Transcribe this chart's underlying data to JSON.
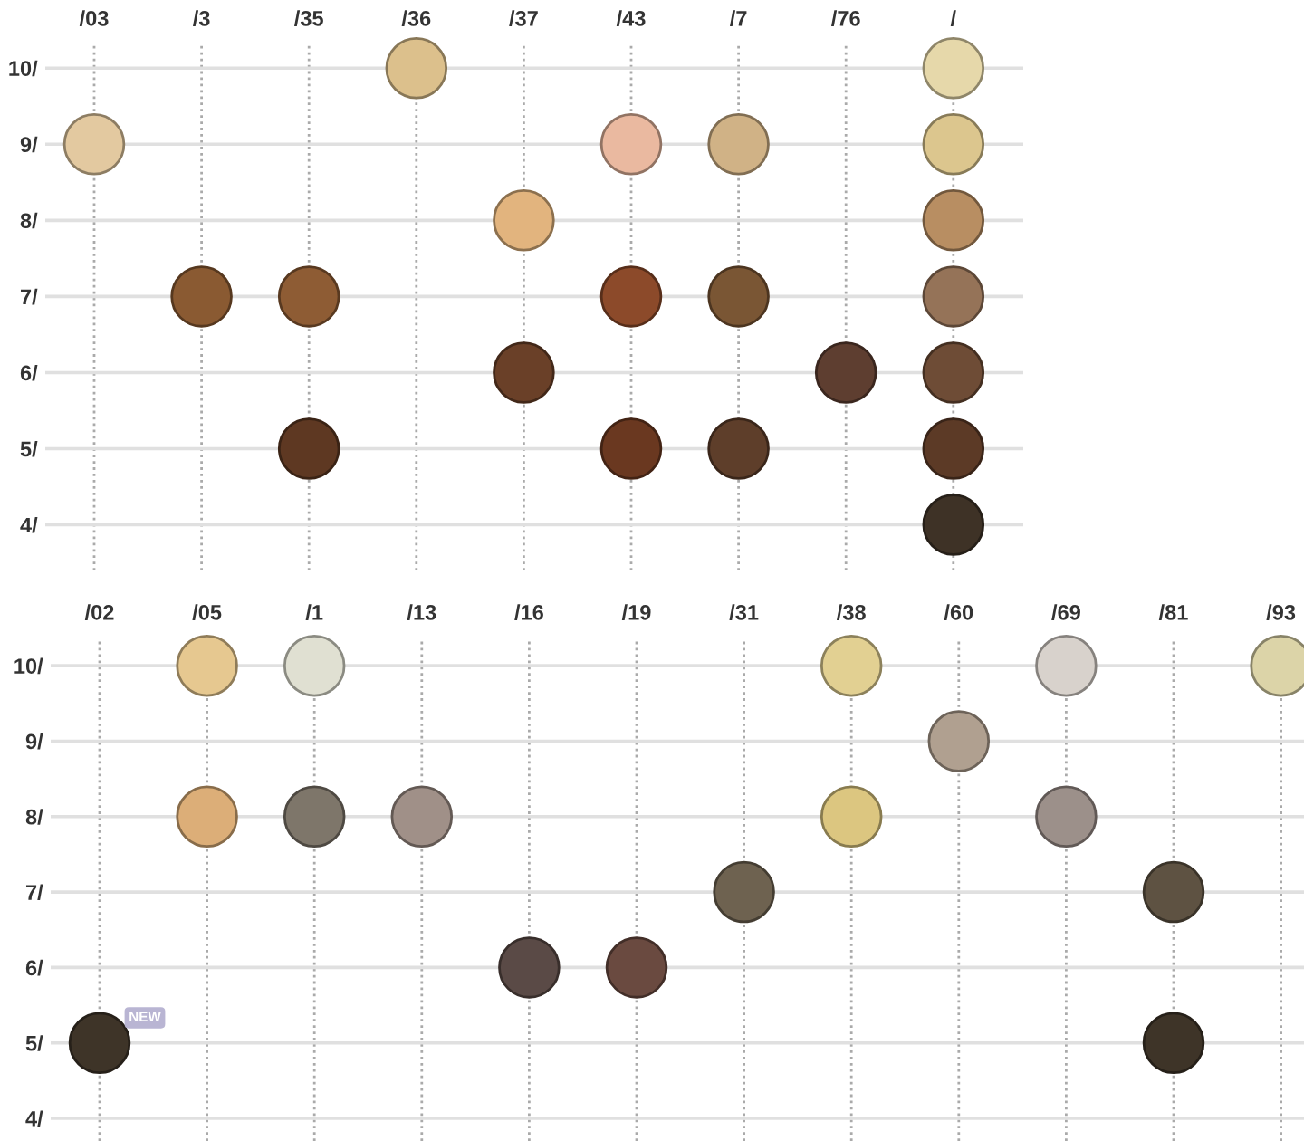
{
  "chart_data": [
    {
      "type": "scatter",
      "categories": [
        "/03",
        "/3",
        "/35",
        "/36",
        "/37",
        "/43",
        "/7",
        "/76",
        "/"
      ],
      "series": [
        {
          "x": [
            "/03",
            "/3",
            "/35",
            "/35",
            "/36",
            "/37",
            "/37",
            "/43",
            "/43",
            "/43",
            "/7",
            "/7",
            "/7",
            "/76",
            "/",
            "/",
            "/",
            "/",
            "/",
            "/",
            "/"
          ],
          "values": [
            9,
            7,
            7,
            5,
            10,
            8,
            6,
            9,
            7,
            5,
            9,
            7,
            5,
            6,
            10,
            9,
            8,
            7,
            6,
            5,
            4
          ],
          "colors": [
            "#e3c9a0",
            "#8a5a32",
            "#8e5c34",
            "#5e3822",
            "#dcc08c",
            "#e2b47e",
            "#6a4028",
            "#eab9a0",
            "#8c4a2a",
            "#6a3820",
            "#d0b286",
            "#7a5634",
            "#5e3e2a",
            "#5e3e30",
            "#e6d8aa",
            "#dcc68e",
            "#b88e62",
            "#957358",
            "#6e4c36",
            "#5c3a26",
            "#3e3226"
          ]
        }
      ],
      "ylim": [
        3.4,
        10.3
      ],
      "yticks": [
        {
          "value": 10,
          "label": "10/"
        },
        {
          "value": 9,
          "label": "9/"
        },
        {
          "value": 8,
          "label": "8/"
        },
        {
          "value": 7,
          "label": "7/"
        },
        {
          "value": 6,
          "label": "6/"
        },
        {
          "value": 5,
          "label": "5/"
        },
        {
          "value": 4,
          "label": "4/"
        }
      ],
      "grid": true,
      "marker": "circle"
    },
    {
      "type": "scatter",
      "categories": [
        "/02",
        "/05",
        "/1",
        "/13",
        "/16",
        "/19",
        "/31",
        "/38",
        "/60",
        "/69",
        "/81",
        "/93"
      ],
      "series": [
        {
          "x": [
            "/02",
            "/05",
            "/05",
            "/1",
            "/1",
            "/13",
            "/16",
            "/19",
            "/31",
            "/38",
            "/38",
            "/60",
            "/69",
            "/69",
            "/81",
            "/81",
            "/93"
          ],
          "values": [
            5,
            10,
            8,
            10,
            8,
            8,
            6,
            6,
            7,
            10,
            8,
            9,
            10,
            8,
            7,
            5,
            10
          ],
          "colors": [
            "#3e3428",
            "#e6c890",
            "#dcae78",
            "#e0e0d2",
            "#7e766a",
            "#a09088",
            "#5a4a46",
            "#6a4a40",
            "#6e6250",
            "#e2d092",
            "#dcc680",
            "#b0a090",
            "#d8d2cc",
            "#9c908a",
            "#5e5242",
            "#3e3428",
            "#dcd4a8"
          ]
        }
      ],
      "ylim": [
        3.7,
        10.35
      ],
      "yticks": [
        {
          "value": 10,
          "label": "10/"
        },
        {
          "value": 9,
          "label": "9/"
        },
        {
          "value": 8,
          "label": "8/"
        },
        {
          "value": 7,
          "label": "7/"
        },
        {
          "value": 6,
          "label": "6/"
        },
        {
          "value": 5,
          "label": "5/"
        },
        {
          "value": 4,
          "label": "4/"
        }
      ],
      "grid": true,
      "marker": "circle",
      "annotations": [
        {
          "text": "NEW",
          "x": "/02",
          "y": 5
        }
      ]
    }
  ]
}
